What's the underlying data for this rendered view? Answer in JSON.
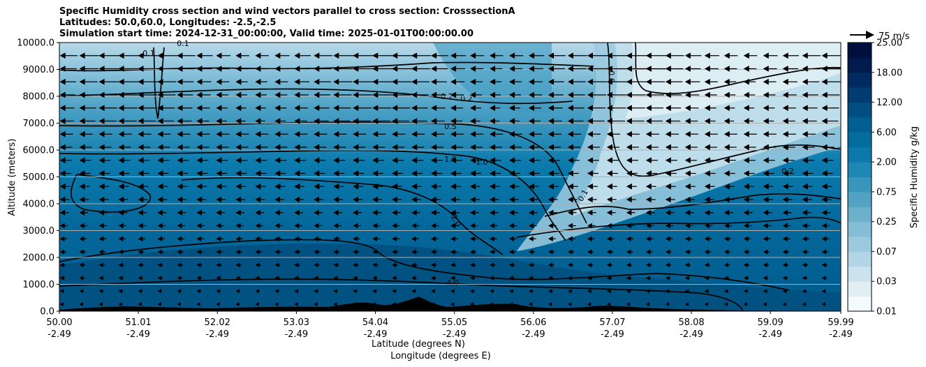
{
  "title_lines": [
    "Specific Humidity cross section and wind vectors parallel to cross section: CrosssectionA",
    "Latitudes: 50.0,60.0, Longitudes: -2.5,-2.5",
    "Simulation start time: 2024-12-31_00:00:00, Valid time: 2025-01-01T00:00:00.00"
  ],
  "chart_data": {
    "type": "heatmap",
    "ylabel": "Altitude (meters)",
    "xlabel_lat": "Latitude (degrees N)",
    "xlabel_lon": "Longitude (degrees E)",
    "y_ticks": [
      "0.0",
      "1000.0",
      "2000.0",
      "3000.0",
      "4000.0",
      "5000.0",
      "6000.0",
      "7000.0",
      "8000.0",
      "9000.0",
      "10000.0"
    ],
    "y_values": [
      0,
      1000,
      2000,
      3000,
      4000,
      5000,
      6000,
      7000,
      8000,
      9000,
      10000
    ],
    "ylim": [
      0,
      10000
    ],
    "x_ticks_lat": [
      "50.00",
      "51.01",
      "52.02",
      "53.03",
      "54.04",
      "55.05",
      "56.06",
      "57.07",
      "58.08",
      "59.09",
      "59.99"
    ],
    "x_ticks_lon": [
      "-2.49",
      "-2.49",
      "-2.49",
      "-2.49",
      "-2.49",
      "-2.49",
      "-2.49",
      "-2.49",
      "-2.49",
      "-2.49",
      "-2.49"
    ],
    "x_values": [
      50.0,
      51.01,
      52.02,
      53.03,
      54.04,
      55.05,
      56.06,
      57.07,
      58.08,
      59.09,
      59.99
    ],
    "xlim": [
      50.0,
      59.99
    ],
    "grid": "horizontal",
    "colorbar": {
      "label": "Specific Humidity g/kg",
      "ticks": [
        "0.01",
        "0.03",
        "0.07",
        "0.25",
        "0.75",
        "2.00",
        "6.00",
        "12.00",
        "18.00",
        "25.00"
      ],
      "colors": [
        "#f5fafc",
        "#e1eff5",
        "#cbe3ee",
        "#b3d6e6",
        "#9bcade",
        "#84bdd5",
        "#6cb0cc",
        "#53a2c3",
        "#3895bb",
        "#1e87b3",
        "#0d79aa",
        "#056c9e",
        "#025f91",
        "#014f82",
        "#013b70",
        "#012a5e",
        "#011b4d",
        "#010f3e"
      ]
    },
    "quiver_key": "75 m/s",
    "contour_labels": [
      "0.1",
      "0.1",
      "0.2",
      "0.2",
      "0.5",
      "1.0",
      "1.0",
      "2.0",
      "4.0",
      "0.0",
      "0.1",
      "0.2"
    ]
  }
}
